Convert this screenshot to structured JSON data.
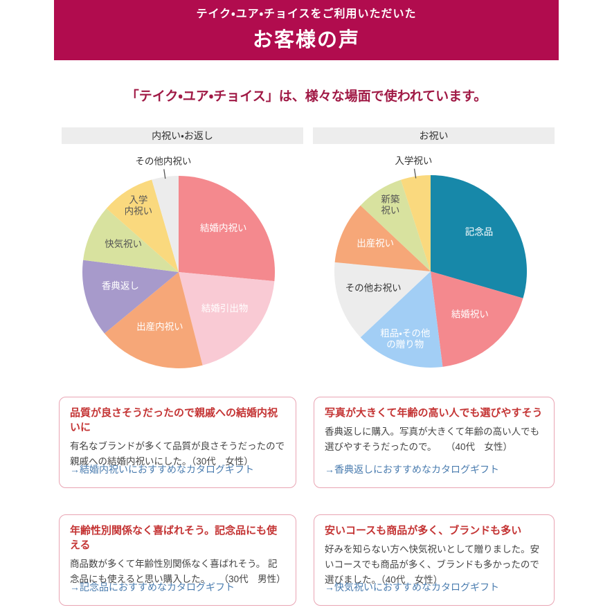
{
  "theme": {
    "banner_bg": "#B10C4E",
    "banner_text": "#FFFFFF",
    "intro_color": "#A01945",
    "section_bar_bg": "#EDEDED",
    "card_border": "#E9A4B3",
    "card_title_color": "#C43434",
    "card_body_color": "#444444",
    "link_color": "#4A7CAF"
  },
  "banner": {
    "subtitle": "テイク・ユア・チョイスをご利用いただいた",
    "title": "お客様の声"
  },
  "intro": "「テイク・ユア・チョイス」は、様々な場面で使われています。",
  "sections": [
    {
      "header": "内祝い・お返し"
    },
    {
      "header": "お祝い"
    }
  ],
  "chart_data": [
    {
      "type": "pie",
      "title": "内祝い・お返し",
      "values_are": "percent, estimated from arc angles",
      "start_angle_deg": 0,
      "legend": "none (labels on slices)",
      "segments": [
        {
          "label": "結婚内祝い",
          "value": 26.5,
          "color": "#F4898E",
          "label_color": "#FFFFFF",
          "label_placement": "inside"
        },
        {
          "label": "結婚引出物",
          "value": 19.5,
          "color": "#F9CAD4",
          "label_color": "#FFFFFF",
          "label_placement": "inside"
        },
        {
          "label": "出産内祝い",
          "value": 18.0,
          "color": "#F6A778",
          "label_color": "#FFFFFF",
          "label_placement": "inside"
        },
        {
          "label": "香典返し",
          "value": 13.0,
          "color": "#A79ACB",
          "label_color": "#FFFFFF",
          "label_placement": "inside"
        },
        {
          "label": "快気祝い",
          "value": 9.5,
          "color": "#D8E29F",
          "label_color": "#555555",
          "label_placement": "inside"
        },
        {
          "label": "入学\n内祝い",
          "value": 9.0,
          "color": "#FAD97E",
          "label_color": "#555555",
          "label_placement": "inside"
        },
        {
          "label": "その他内祝い",
          "value": 4.5,
          "color": "#ECECEC",
          "label_color": "#333333",
          "label_placement": "outside"
        }
      ]
    },
    {
      "type": "pie",
      "title": "お祝い",
      "values_are": "percent, estimated from arc angles",
      "start_angle_deg": 0,
      "legend": "none (labels on slices)",
      "segments": [
        {
          "label": "記念品",
          "value": 29.5,
          "color": "#1788A9",
          "label_color": "#FFFFFF",
          "label_placement": "inside"
        },
        {
          "label": "結婚祝い",
          "value": 18.5,
          "color": "#F4898E",
          "label_color": "#FFFFFF",
          "label_placement": "inside"
        },
        {
          "label": "粗品・その他\nの贈り物",
          "value": 15.0,
          "color": "#A2CEF5",
          "label_color": "#FFFFFF",
          "label_placement": "inside"
        },
        {
          "label": "その他お祝い",
          "value": 13.5,
          "color": "#ECECEC",
          "label_color": "#333333",
          "label_placement": "inside"
        },
        {
          "label": "出産祝い",
          "value": 10.5,
          "color": "#F6A778",
          "label_color": "#FFFFFF",
          "label_placement": "inside"
        },
        {
          "label": "新築\n祝い",
          "value": 8.0,
          "color": "#D8E29F",
          "label_color": "#555555",
          "label_placement": "inside"
        },
        {
          "label": "入学祝い",
          "value": 5.0,
          "color": "#FAD97E",
          "label_color": "#333333",
          "label_placement": "outside"
        }
      ]
    }
  ],
  "cards": [
    {
      "title": "品質が良さそうだったので親戚への結婚内祝いに",
      "body": "有名なブランドが多くて品質が良さそうだったので親戚への結婚内祝いにした。（30代　女性）",
      "link": "→結婚内祝いにおすすめなカタログギフト"
    },
    {
      "title": "写真が大きくて年齢の高い人でも選びやすそう",
      "body": "香典返しに購入。写真が大きくて年齢の高い人でも選びやすそうだったので。　　（40代　女性）",
      "link": "→香典返しにおすすめなカタログギフト"
    },
    {
      "title": "年齢性別関係なく喜ばれそう。記念品にも使える",
      "body": "商品数が多くて年齢性別関係なく喜ばれそう。 記念品にも使えると思い購入した。　　（30代　男性）",
      "link": "→記念品におすすめなカタログギフト"
    },
    {
      "title": "安いコースも商品が多く、ブランドも多い",
      "body": "好みを知らない方へ快気祝いとして贈りました。安いコースでも商品が多く、ブランドも多かったので選びました。（40代　女性）",
      "link": "→快気祝いにおすすめなカタログギフト"
    }
  ]
}
